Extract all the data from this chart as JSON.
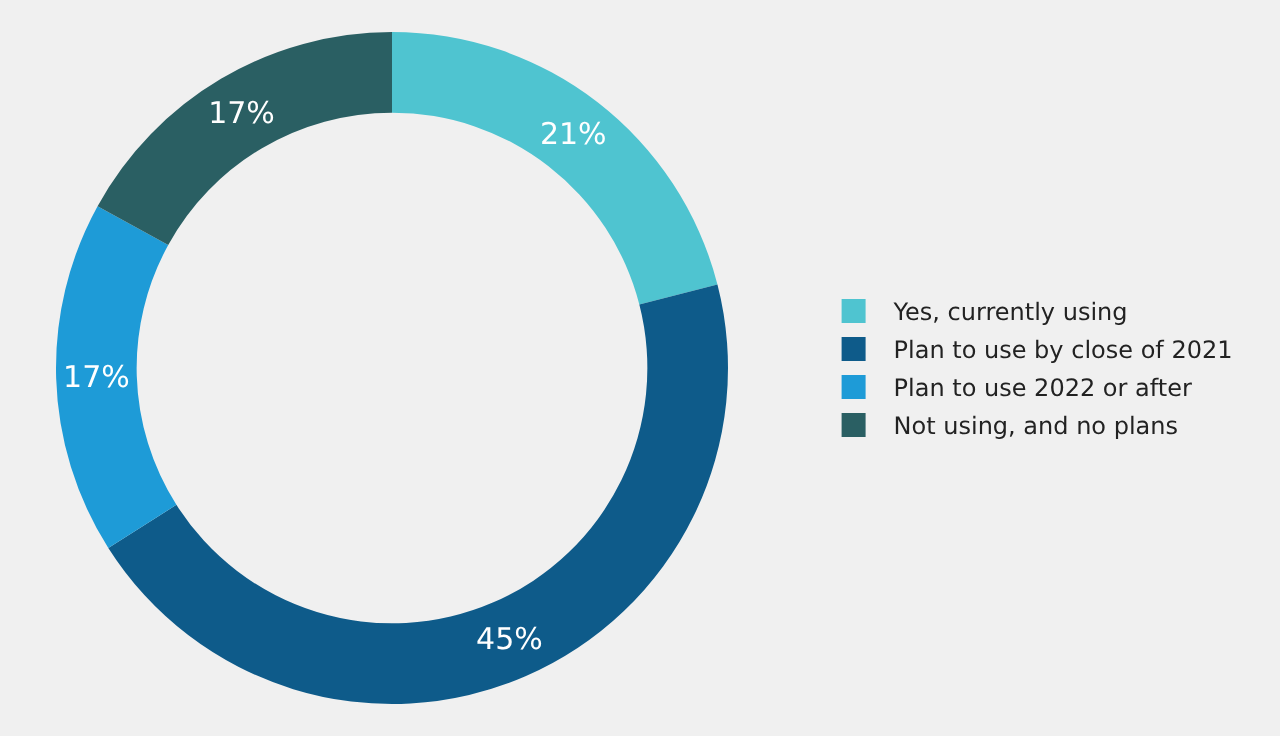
{
  "chart_data": {
    "type": "donut",
    "categories": [
      "Yes, currently using",
      "Plan to use by close of 2021",
      "Plan to use 2022 or after",
      "Not using, and no plans"
    ],
    "values": [
      21,
      45,
      17,
      17
    ],
    "colors": [
      "#4fc4d0",
      "#0e5b8a",
      "#1e9bd7",
      "#2a5f63"
    ],
    "value_labels": [
      "21%",
      "45%",
      "17%",
      "17%"
    ],
    "legend": "right"
  }
}
